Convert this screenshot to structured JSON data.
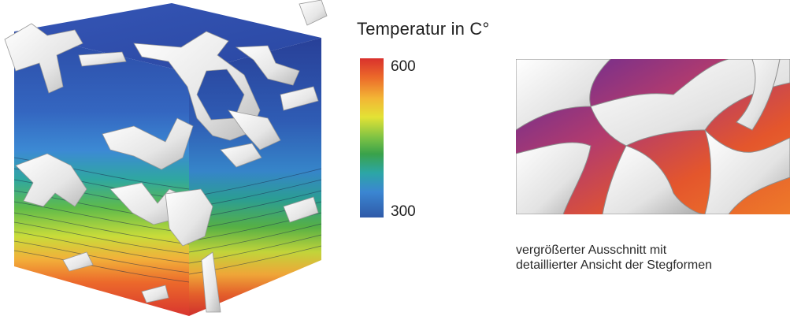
{
  "legend": {
    "title": "Temperatur in C°",
    "max_label": "600",
    "min_label": "300",
    "gradient_colors": [
      "#d9312d",
      "#ec6a2a",
      "#f3b535",
      "#e3e235",
      "#7cc244",
      "#3aa24a",
      "#2ca6a6",
      "#3b86d2",
      "#2f5aa8"
    ]
  },
  "caption": {
    "line1": "vergrößerter Ausschnitt mit",
    "line2": "detaillierter Ansicht der Stegformen"
  }
}
